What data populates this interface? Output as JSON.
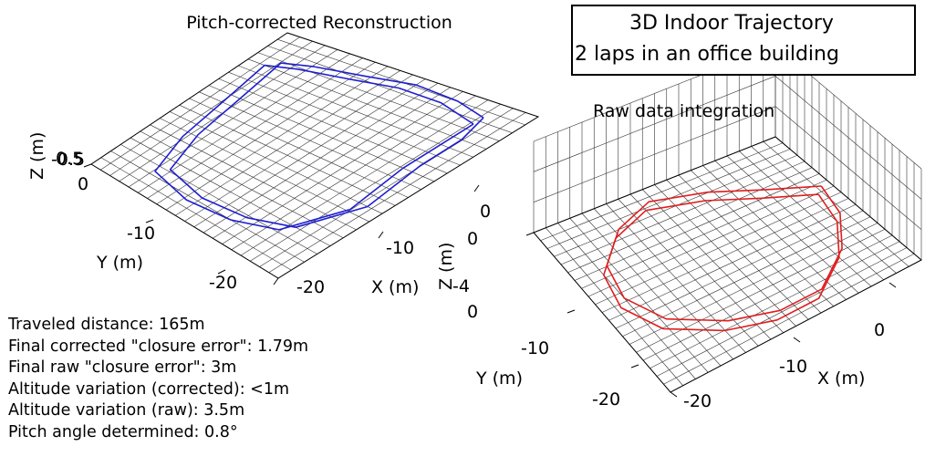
{
  "figure": {
    "title_line1": "3D Indoor Trajectory",
    "title_line2": "2 laps in an office building"
  },
  "stats": [
    "Traveled distance: 165m",
    "Final corrected \"closure error\": 1.79m",
    "Final raw \"closure error\": 3m",
    "Altitude variation (corrected): <1m",
    "Altitude variation (raw): 3.5m",
    "Pitch angle determined: 0.8°"
  ],
  "chart_data": [
    {
      "type": "line",
      "title": "Pitch-corrected Reconstruction",
      "xlabel": "X (m)",
      "ylabel": "Y (m)",
      "zlabel": "Z (m)",
      "x_ticks": [
        "-10",
        "-20"
      ],
      "y_ticks": [
        "-10",
        "-20"
      ],
      "z_ticks": [
        "0.5",
        "-0.5",
        "0"
      ],
      "grid": true,
      "color": "#1f1fd0",
      "series": [
        {
          "values": [
            [
              -2,
              -2
            ],
            [
              -6,
              -1.2
            ],
            [
              -11,
              -1
            ],
            [
              -16,
              -2
            ],
            [
              -21,
              -3
            ],
            [
              -24,
              -4
            ],
            [
              -23,
              -10
            ],
            [
              -22,
              -16
            ],
            [
              -20,
              -21
            ],
            [
              -14,
              -22
            ],
            [
              -8,
              -21.5
            ],
            [
              -3,
              -20
            ],
            [
              0,
              -15
            ],
            [
              -1,
              -9
            ],
            [
              -1,
              -5
            ],
            [
              -2,
              -2
            ]
          ]
        },
        {
          "values": [
            [
              -2,
              -3
            ],
            [
              -7,
              -2
            ],
            [
              -12,
              -2
            ],
            [
              -17,
              -3
            ],
            [
              -22,
              -4
            ],
            [
              -25,
              -5
            ],
            [
              -24,
              -11
            ],
            [
              -23,
              -17
            ],
            [
              -21,
              -22
            ],
            [
              -15,
              -23
            ],
            [
              -9,
              -22.5
            ],
            [
              -4,
              -21
            ],
            [
              -1,
              -16
            ],
            [
              -2,
              -10
            ],
            [
              -2,
              -6
            ],
            [
              -2,
              -3
            ]
          ]
        }
      ]
    },
    {
      "type": "line",
      "title": "Raw data integration",
      "xlabel": "X (m)",
      "ylabel": "Y (m)",
      "zlabel": "Z (m)",
      "x_ticks": [
        "0",
        "-10",
        "-20"
      ],
      "y_ticks": [
        "-10",
        "-20"
      ],
      "z_ticks": [
        "0",
        "-4",
        "0"
      ],
      "grid": true,
      "color": "#e01e1e",
      "series": [
        {
          "values": [
            [
              2,
              -8
            ],
            [
              -3,
              -5
            ],
            [
              -8,
              -2
            ],
            [
              -14,
              0
            ],
            [
              -19,
              -2
            ],
            [
              -23,
              -6
            ],
            [
              -24,
              -11
            ],
            [
              -22,
              -16
            ],
            [
              -17,
              -20
            ],
            [
              -12,
              -22
            ],
            [
              -7,
              -22
            ],
            [
              -2,
              -18
            ],
            [
              1,
              -13
            ],
            [
              2,
              -8
            ]
          ]
        },
        {
          "values": [
            [
              1,
              -9
            ],
            [
              -4,
              -6
            ],
            [
              -9,
              -3
            ],
            [
              -15,
              -1
            ],
            [
              -20,
              -3
            ],
            [
              -24,
              -7
            ],
            [
              -25,
              -12
            ],
            [
              -23,
              -17
            ],
            [
              -18,
              -21
            ],
            [
              -13,
              -23
            ],
            [
              -8,
              -23
            ],
            [
              -3,
              -19
            ],
            [
              0,
              -14
            ],
            [
              1,
              -9
            ]
          ]
        }
      ]
    }
  ]
}
